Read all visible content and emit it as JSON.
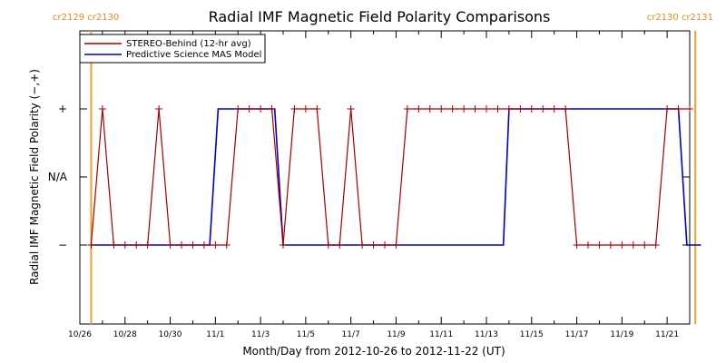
{
  "chart_data": {
    "type": "line",
    "title": "Radial IMF Magnetic Field Polarity Comparisons",
    "xlabel": "Month/Day from 2012-10-26 to 2012-11-22 (UT)",
    "ylabel": "Radial IMF Magnetic Field Polarity (−,+)",
    "x_start": "2012-10-26",
    "x_end": "2012-11-22",
    "x_tick_labels": [
      "10/26",
      "10/28",
      "10/30",
      "11/1",
      "11/3",
      "11/5",
      "11/7",
      "11/9",
      "11/11",
      "11/13",
      "11/15",
      "11/17",
      "11/19",
      "11/21"
    ],
    "y_categories": [
      "−",
      "N/A",
      "+"
    ],
    "carrington_markers": [
      {
        "date": "2012-10-26 12:00",
        "label": "cr2129 cr2130",
        "side": "left"
      },
      {
        "date": "2012-11-22 06:00",
        "label": "cr2130 cr2131",
        "side": "right"
      }
    ],
    "series": [
      {
        "name": "STEREO-Behind (12-hr avg)",
        "color": "#a00000",
        "markers": true,
        "x": [
          "2012-10-26 12:00",
          "2012-10-27 00:00",
          "2012-10-27 12:00",
          "2012-10-28 00:00",
          "2012-10-28 12:00",
          "2012-10-29 00:00",
          "2012-10-29 12:00",
          "2012-10-30 00:00",
          "2012-10-30 12:00",
          "2012-10-31 00:00",
          "2012-10-31 12:00",
          "2012-11-01 00:00",
          "2012-11-01 12:00",
          "2012-11-02 00:00",
          "2012-11-02 12:00",
          "2012-11-03 00:00",
          "2012-11-03 12:00",
          "2012-11-04 00:00",
          "2012-11-04 12:00",
          "2012-11-05 00:00",
          "2012-11-05 12:00",
          "2012-11-06 00:00",
          "2012-11-06 12:00",
          "2012-11-07 00:00",
          "2012-11-07 12:00",
          "2012-11-08 00:00",
          "2012-11-08 12:00",
          "2012-11-09 00:00",
          "2012-11-09 12:00",
          "2012-11-10 00:00",
          "2012-11-10 12:00",
          "2012-11-11 00:00",
          "2012-11-11 12:00",
          "2012-11-12 00:00",
          "2012-11-12 12:00",
          "2012-11-13 00:00",
          "2012-11-13 12:00",
          "2012-11-14 00:00",
          "2012-11-14 12:00",
          "2012-11-15 00:00",
          "2012-11-15 12:00",
          "2012-11-16 00:00",
          "2012-11-16 12:00",
          "2012-11-17 00:00",
          "2012-11-17 12:00",
          "2012-11-18 00:00",
          "2012-11-18 12:00",
          "2012-11-19 00:00",
          "2012-11-19 12:00",
          "2012-11-20 00:00",
          "2012-11-20 12:00",
          "2012-11-21 00:00",
          "2012-11-21 12:00",
          "2012-11-22 00:00"
        ],
        "values": [
          "-",
          "+",
          "-",
          "-",
          "-",
          "-",
          "+",
          "-",
          "-",
          "-",
          "-",
          "-",
          "-",
          "+",
          "+",
          "+",
          "+",
          "-",
          "+",
          "+",
          "+",
          "-",
          "-",
          "+",
          "-",
          "-",
          "-",
          "-",
          "+",
          "+",
          "+",
          "+",
          "+",
          "+",
          "+",
          "+",
          "+",
          "+",
          "+",
          "+",
          "+",
          "+",
          "+",
          "-",
          "-",
          "-",
          "-",
          "-",
          "-",
          "-",
          "-",
          "+",
          "+",
          "+"
        ]
      },
      {
        "name": "Predictive Science MAS Model",
        "color": "#0000c0",
        "markers": false,
        "x": [
          "2012-10-26 12:00",
          "2012-10-31 18:00",
          "2012-11-01 03:00",
          "2012-11-03 15:00",
          "2012-11-04 00:00",
          "2012-11-13 18:00",
          "2012-11-14 00:00",
          "2012-11-21 12:00",
          "2012-11-21 21:00",
          "2012-11-22 12:00"
        ],
        "values": [
          "-",
          "-",
          "+",
          "+",
          "-",
          "-",
          "+",
          "+",
          "-",
          "-"
        ]
      }
    ],
    "legend": "top-left",
    "grid": false
  }
}
